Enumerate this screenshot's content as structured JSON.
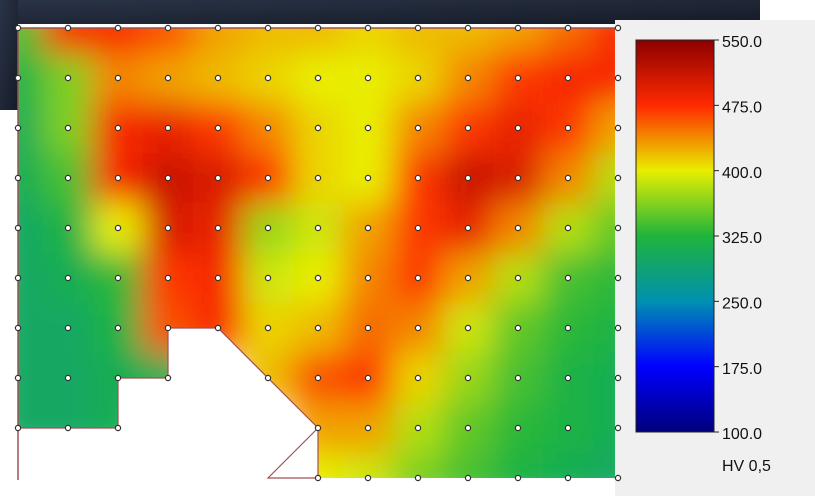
{
  "chart_data": {
    "type": "heatmap",
    "values": [
      [
        340,
        480,
        480,
        460,
        430,
        420,
        420,
        410,
        420,
        420,
        430,
        450,
        480
      ],
      [
        320,
        360,
        440,
        430,
        420,
        410,
        400,
        400,
        410,
        440,
        470,
        480,
        480
      ],
      [
        310,
        360,
        480,
        490,
        470,
        440,
        410,
        400,
        440,
        470,
        490,
        470,
        430
      ],
      [
        310,
        340,
        480,
        510,
        500,
        470,
        410,
        400,
        470,
        510,
        500,
        440,
        380
      ],
      [
        300,
        320,
        400,
        500,
        490,
        370,
        390,
        430,
        470,
        490,
        440,
        380,
        350
      ],
      [
        300,
        310,
        330,
        470,
        480,
        390,
        400,
        440,
        470,
        430,
        380,
        340,
        330
      ],
      [
        300,
        300,
        320,
        460,
        480,
        410,
        420,
        450,
        440,
        390,
        350,
        330,
        320
      ],
      [
        300,
        300,
        310,
        310,
        null,
        420,
        460,
        470,
        410,
        370,
        340,
        320,
        310
      ],
      [
        300,
        300,
        310,
        null,
        null,
        null,
        430,
        430,
        380,
        350,
        330,
        320,
        310
      ],
      [
        null,
        null,
        null,
        null,
        null,
        null,
        400,
        390,
        360,
        340,
        320,
        310,
        300
      ]
    ],
    "colorscale": [
      [
        100,
        "#00007a"
      ],
      [
        175,
        "#0000ff"
      ],
      [
        250,
        "#0090b0"
      ],
      [
        325,
        "#1fb43c"
      ],
      [
        400,
        "#e8ee00"
      ],
      [
        475,
        "#ff2a00"
      ],
      [
        550,
        "#8c0000"
      ]
    ],
    "clim": [
      100,
      550
    ],
    "cticks": [
      {
        "value": 550,
        "label": "550.0"
      },
      {
        "value": 475,
        "label": "475.0"
      },
      {
        "value": 400,
        "label": "400.0"
      },
      {
        "value": 325,
        "label": "325.0"
      },
      {
        "value": 250,
        "label": "250.0"
      },
      {
        "value": 175,
        "label": "175.0"
      },
      {
        "value": 100,
        "label": "100.0"
      }
    ],
    "colorbar_label": "HV 0,5"
  }
}
